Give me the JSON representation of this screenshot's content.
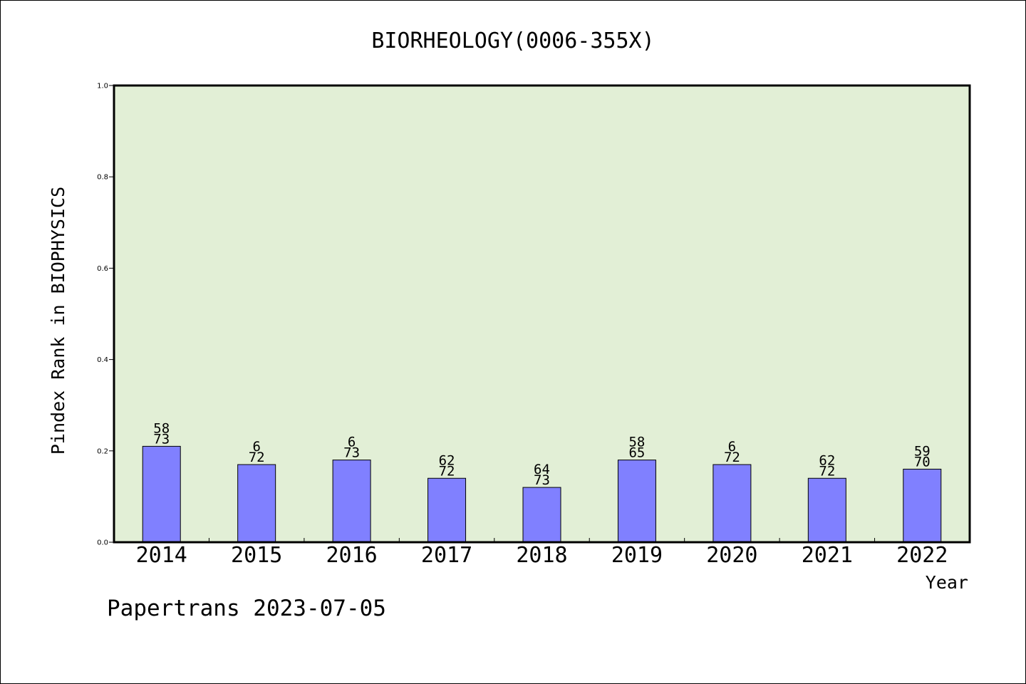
{
  "chart_data": {
    "type": "bar",
    "title": "BIORHEOLOGY(0006-355X)",
    "xlabel": "Year",
    "ylabel": "Pindex Rank in BIOPHYSICS",
    "footer": "Papertrans 2023-07-05",
    "ylim": [
      0,
      1.0
    ],
    "yticks": [
      "0.0",
      "0.2",
      "0.4",
      "0.6",
      "0.8",
      "1.0"
    ],
    "grid": false,
    "colors": {
      "plot_bg": "#e2efd6",
      "bar": "#8080ff"
    },
    "categories": [
      "2014",
      "2015",
      "2016",
      "2017",
      "2018",
      "2019",
      "2020",
      "2021",
      "2022"
    ],
    "values": [
      0.21,
      0.17,
      0.18,
      0.14,
      0.12,
      0.18,
      0.17,
      0.14,
      0.16
    ],
    "labels_top": [
      "58",
      "6",
      "6",
      "62",
      "64",
      "58",
      "6",
      "62",
      "59"
    ],
    "labels_bottom": [
      "73",
      "72",
      "73",
      "72",
      "73",
      "65",
      "72",
      "72",
      "70"
    ]
  }
}
